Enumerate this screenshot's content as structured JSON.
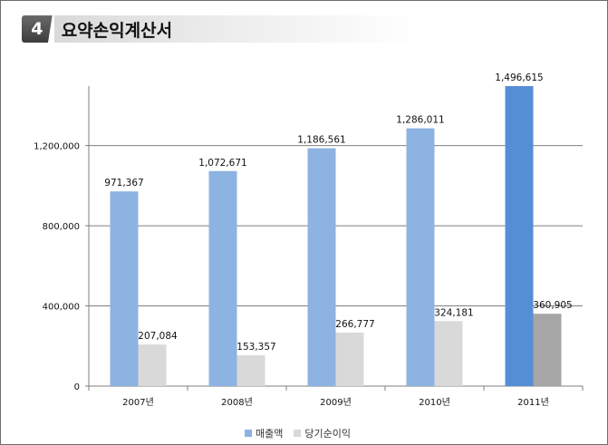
{
  "section_number": "4",
  "section_title": "요약손익계산서",
  "chart_data": {
    "type": "bar",
    "categories": [
      "2007년",
      "2008년",
      "2009년",
      "2010년",
      "2011년"
    ],
    "series": [
      {
        "name": "매출액",
        "values": [
          971367,
          1072671,
          1186561,
          1286011,
          1496615
        ],
        "labels": [
          "971,367",
          "1,072,671",
          "1,186,561",
          "1,286,011",
          "1,496,615"
        ],
        "color": "#8db3e2",
        "highlight_color": "#558ed5"
      },
      {
        "name": "당기순이익",
        "values": [
          207084,
          153357,
          266777,
          324181,
          360905
        ],
        "labels": [
          "207,084",
          "153,357",
          "266,777",
          "324,181",
          "360,905"
        ],
        "color": "#d9d9d9",
        "highlight_color": "#a6a6a6"
      }
    ],
    "highlight_category": "2011년",
    "yticks": [
      0,
      400000,
      800000,
      1200000
    ],
    "ytick_labels": [
      "0",
      "400,000",
      "800,000",
      "1,200,000"
    ],
    "ylim": [
      0,
      1496615
    ],
    "grid": true,
    "legend_position": "bottom"
  }
}
